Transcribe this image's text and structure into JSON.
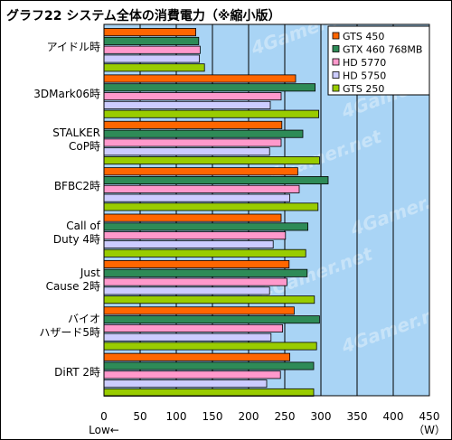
{
  "title": "グラフ22 システム全体の消費電力（※縮小版）",
  "watermark": "4Gamer.net",
  "colors": {
    "plot_bg": "#a9d4f5",
    "grid": "#000000"
  },
  "chart_data": {
    "type": "bar",
    "orientation": "horizontal",
    "title": "グラフ22 システム全体の消費電力（※縮小版）",
    "xlabel": "Low←",
    "x_unit_label": "（W）",
    "xlim": [
      0,
      450
    ],
    "x_ticks": [
      0,
      50,
      100,
      150,
      200,
      250,
      300,
      350,
      400,
      450
    ],
    "grid": true,
    "legend_position": "top-right",
    "categories": [
      "アイドル時",
      "3DMark06時",
      "STALKER\nCoP時",
      "BFBC2時",
      "Call of\nDuty 4時",
      "Just\nCause 2時",
      "バイオ\nハザード5時",
      "DiRT 2時"
    ],
    "series": [
      {
        "name": "GTS 450",
        "color": "#ff6600",
        "values": [
          127,
          265,
          246,
          268,
          245,
          256,
          263,
          257
        ]
      },
      {
        "name": "GTX 460 768MB",
        "color": "#2e8b57",
        "values": [
          131,
          292,
          275,
          310,
          282,
          281,
          298,
          290
        ]
      },
      {
        "name": "HD 5770",
        "color": "#ff99cc",
        "values": [
          133,
          245,
          245,
          270,
          251,
          253,
          247,
          244
        ]
      },
      {
        "name": "HD 5750",
        "color": "#ccccff",
        "values": [
          132,
          230,
          229,
          257,
          234,
          229,
          231,
          225
        ]
      },
      {
        "name": "GTS 250",
        "color": "#99cc00",
        "values": [
          139,
          297,
          298,
          296,
          279,
          291,
          294,
          290
        ]
      }
    ]
  }
}
